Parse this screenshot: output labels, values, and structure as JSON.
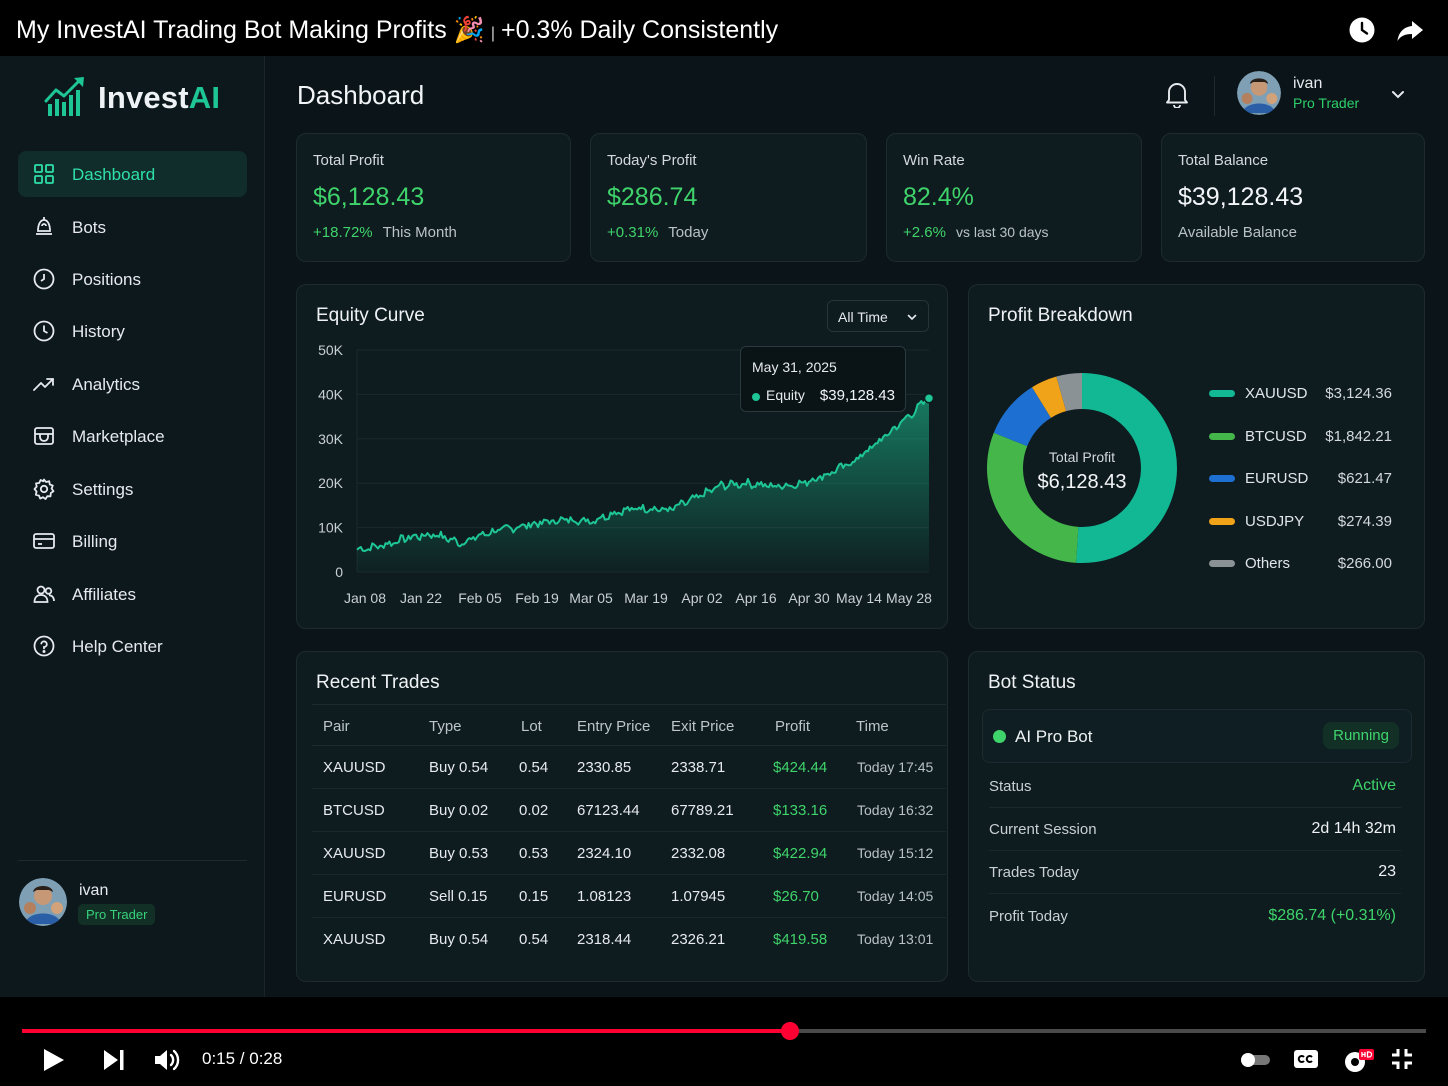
{
  "video": {
    "title_main": "My InvestAI Trading Bot Making Profits 🎉",
    "title_pipe": "|",
    "title_tail": "+0.3% Daily Consistently",
    "current_time": "0:15",
    "duration": "0:28",
    "time_display": "0:15 / 0:28",
    "progress_fraction": 0.547,
    "accent": "#ff0033"
  },
  "brand": {
    "name_a": "Invest",
    "name_b": "AI",
    "accent": "#1ec596"
  },
  "sidebar": {
    "items": [
      {
        "label": "Dashboard",
        "icon": "grid-icon",
        "active": true
      },
      {
        "label": "Bots",
        "icon": "bot-icon"
      },
      {
        "label": "Positions",
        "icon": "clock-circle-icon"
      },
      {
        "label": "History",
        "icon": "history-icon"
      },
      {
        "label": "Analytics",
        "icon": "trend-icon"
      },
      {
        "label": "Marketplace",
        "icon": "store-icon"
      },
      {
        "label": "Settings",
        "icon": "gear-icon"
      },
      {
        "label": "Billing",
        "icon": "card-icon"
      },
      {
        "label": "Affiliates",
        "icon": "users-icon"
      },
      {
        "label": "Help Center",
        "icon": "help-icon"
      }
    ],
    "user": {
      "name": "ivan",
      "badge": "Pro Trader"
    }
  },
  "header": {
    "title": "Dashboard",
    "user_name": "ivan",
    "user_role": "Pro Trader"
  },
  "stats": [
    {
      "label": "Total Profit",
      "value": "$6,128.43",
      "change": "+18.72%",
      "note": "This Month"
    },
    {
      "label": "Today's Profit",
      "value": "$286.74",
      "change": "+0.31%",
      "note": "Today"
    },
    {
      "label": "Win Rate",
      "value": "82.4%",
      "change": "+2.6%",
      "note": "vs last 30 days"
    },
    {
      "label": "Total Balance",
      "value": "$39,128.43",
      "change": "",
      "note": "Available Balance"
    }
  ],
  "equity": {
    "title": "Equity Curve",
    "range": "All Time",
    "tooltip": {
      "date": "May 31, 2025",
      "series": "Equity",
      "value": "$39,128.43"
    }
  },
  "chart_data": [
    {
      "type": "area",
      "title": "Equity Curve",
      "ylim": [
        0,
        50000
      ],
      "y_ticks": [
        "0",
        "10K",
        "20K",
        "30K",
        "40K",
        "50K"
      ],
      "x_ticks": [
        "Jan 08",
        "Jan 22",
        "Feb 05",
        "Feb 19",
        "Mar 05",
        "Mar 19",
        "Apr 02",
        "Apr 16",
        "Apr 30",
        "May 14",
        "May 28"
      ],
      "x": [
        "Jan 01",
        "Jan 08",
        "Jan 15",
        "Jan 22",
        "Jan 29",
        "Feb 05",
        "Feb 12",
        "Feb 19",
        "Feb 26",
        "Mar 05",
        "Mar 12",
        "Mar 19",
        "Mar 26",
        "Apr 02",
        "Apr 09",
        "Apr 16",
        "Apr 23",
        "Apr 30",
        "May 07",
        "May 14",
        "May 21",
        "May 28",
        "May 31"
      ],
      "series": [
        {
          "values": [
            5000,
            6000,
            7800,
            8500,
            6500,
            8800,
            10000,
            11000,
            11800,
            11500,
            13600,
            14500,
            13900,
            16500,
            19500,
            20000,
            19300,
            19800,
            21800,
            24500,
            29000,
            34000,
            39128
          ]
        }
      ],
      "grid": true,
      "color": "#1ec596"
    },
    {
      "type": "pie",
      "title": "Profit Breakdown",
      "center_label": "Total Profit",
      "center_value": "$6,128.43",
      "categories": [
        "XAUUSD",
        "BTCUSD",
        "EURUSD",
        "USDJPY",
        "Others"
      ],
      "values": [
        3124.36,
        1842.21,
        621.47,
        274.39,
        266.0
      ],
      "labels": [
        "$3,124.36",
        "$1,842.21",
        "$621.47",
        "$274.39",
        "$266.00"
      ],
      "colors": [
        "#12b894",
        "#45b64a",
        "#1d6fd1",
        "#f0a219",
        "#8a9296"
      ],
      "legend": "right"
    }
  ],
  "trades": {
    "title": "Recent Trades",
    "columns": [
      "Pair",
      "Type",
      "Lot",
      "Entry Price",
      "Exit Price",
      "Profit",
      "Time"
    ],
    "rows": [
      [
        "XAUUSD",
        "Buy 0.54",
        "0.54",
        "2330.85",
        "2338.71",
        "$424.44",
        "Today 17:45"
      ],
      [
        "BTCUSD",
        "Buy 0.02",
        "0.02",
        "67123.44",
        "67789.21",
        "$133.16",
        "Today 16:32"
      ],
      [
        "XAUUSD",
        "Buy 0.53",
        "0.53",
        "2324.10",
        "2332.08",
        "$422.94",
        "Today 15:12"
      ],
      [
        "EURUSD",
        "Sell 0.15",
        "0.15",
        "1.08123",
        "1.07945",
        "$26.70",
        "Today 14:05"
      ],
      [
        "XAUUSD",
        "Buy 0.54",
        "0.54",
        "2318.44",
        "2326.21",
        "$419.58",
        "Today 13:01"
      ]
    ]
  },
  "bot": {
    "title": "Bot Status",
    "name": "AI Pro Bot",
    "state": "Running",
    "rows": [
      {
        "label": "Status",
        "value": "Active",
        "green": true
      },
      {
        "label": "Current Session",
        "value": "2d 14h 32m"
      },
      {
        "label": "Trades Today",
        "value": "23"
      },
      {
        "label": "Profit Today",
        "value": "$286.74 (+0.31%)",
        "green": true
      }
    ]
  }
}
